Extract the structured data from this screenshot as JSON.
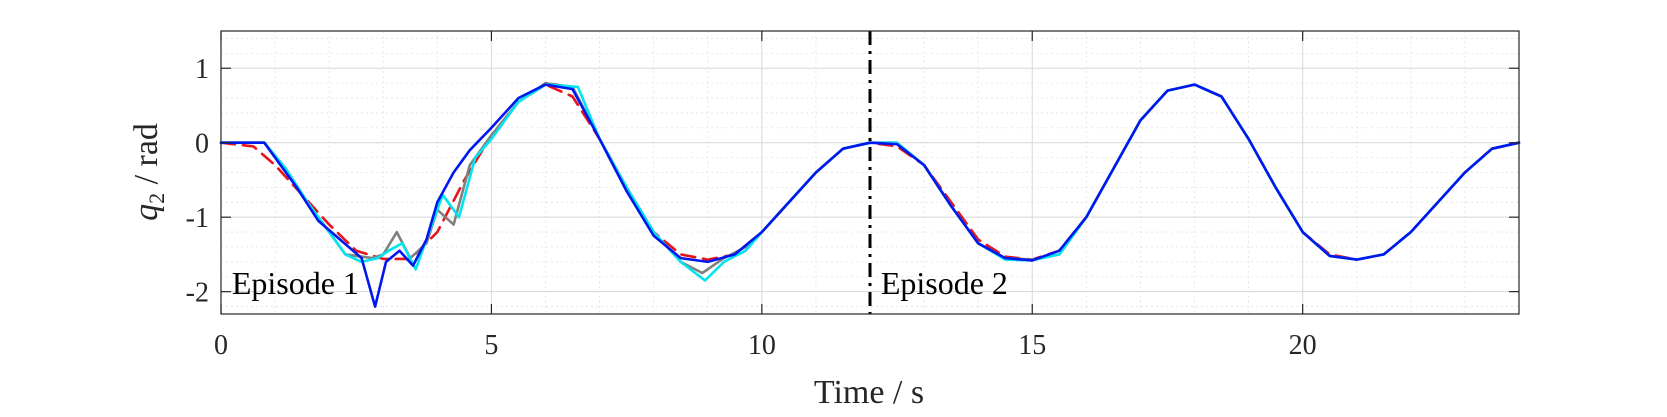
{
  "chart_data": {
    "type": "line",
    "xlabel": "Time / s",
    "ylabel_main": "q",
    "ylabel_sub": "2",
    "ylabel_rest": " / rad",
    "xlim": [
      0,
      24
    ],
    "ylim": [
      -2.3,
      1.5
    ],
    "xticks": [
      0,
      5,
      10,
      15,
      20
    ],
    "xtick_labels": [
      "0",
      "5",
      "10",
      "15",
      "20"
    ],
    "yticks": [
      1,
      0,
      -1,
      -2
    ],
    "ytick_labels": [
      "1",
      "0",
      "-1",
      "-2"
    ],
    "grid": true,
    "minor_grid": true,
    "divider_x": 12,
    "annotations": [
      {
        "text": "Episode 1",
        "x": 0.2,
        "y": -1.9
      },
      {
        "text": "Episode 2",
        "x": 12.2,
        "y": -1.9
      }
    ],
    "series": [
      {
        "style": "dashed",
        "color": "#e8141c",
        "x": [
          0,
          0.6,
          1,
          1.5,
          2,
          2.5,
          3,
          3.5,
          4,
          4.5,
          5,
          5.5,
          6,
          6.5,
          7,
          7.5,
          8,
          8.5,
          9,
          9.5,
          10,
          10.5,
          11,
          11.5,
          12,
          12.5,
          13,
          13.5,
          14,
          14.5,
          15,
          15.5,
          16,
          16.5,
          17,
          17.5,
          18,
          18.5,
          19,
          19.5,
          20,
          20.5,
          21,
          21.5,
          22,
          22.5,
          23,
          23.5,
          24
        ],
        "y": [
          0,
          -0.05,
          -0.3,
          -0.7,
          -1.1,
          -1.45,
          -1.56,
          -1.56,
          -1.2,
          -0.5,
          0.1,
          0.55,
          0.78,
          0.62,
          0.05,
          -0.6,
          -1.2,
          -1.5,
          -1.57,
          -1.5,
          -1.2,
          -0.8,
          -0.4,
          -0.08,
          0,
          -0.05,
          -0.3,
          -0.8,
          -1.3,
          -1.53,
          -1.57,
          -1.45,
          -1.0,
          -0.35,
          0.3,
          0.7,
          0.78,
          0.62,
          0.05,
          -0.6,
          -1.2,
          -1.5,
          -1.57,
          -1.5,
          -1.2,
          -0.8,
          -0.4,
          -0.08,
          0
        ]
      },
      {
        "style": "solid",
        "color": "#808080",
        "x": [
          0,
          0.8,
          1.2,
          1.6,
          2,
          2.3,
          2.5,
          2.8,
          3,
          3.25,
          3.5,
          3.8,
          4,
          4.3,
          4.6,
          5,
          5.5,
          6,
          6.5,
          7,
          7.5,
          8,
          8.5,
          8.9,
          9.3,
          9.7,
          10,
          10.5,
          11,
          11.5,
          12,
          12.5,
          13,
          13.5,
          14,
          14.5,
          15,
          15.5,
          16,
          16.5,
          17,
          17.5,
          18,
          18.5,
          19,
          19.5,
          20,
          20.5,
          21,
          21.5,
          22,
          22.5,
          23,
          23.5,
          24
        ],
        "y": [
          0,
          0,
          -0.35,
          -0.8,
          -1.2,
          -1.5,
          -1.52,
          -1.55,
          -1.5,
          -1.2,
          -1.55,
          -1.35,
          -0.9,
          -1.1,
          -0.3,
          0.1,
          0.55,
          0.8,
          0.75,
          0.05,
          -0.6,
          -1.2,
          -1.6,
          -1.75,
          -1.55,
          -1.4,
          -1.2,
          -0.8,
          -0.4,
          -0.08,
          0,
          0,
          -0.3,
          -0.85,
          -1.35,
          -1.55,
          -1.57,
          -1.5,
          -1.0,
          -0.35,
          0.3,
          0.7,
          0.78,
          0.62,
          0.05,
          -0.6,
          -1.2,
          -1.52,
          -1.57,
          -1.5,
          -1.2,
          -0.8,
          -0.4,
          -0.08,
          0
        ]
      },
      {
        "style": "solid",
        "color": "#00e5ee",
        "x": [
          0,
          0.8,
          1.2,
          1.6,
          2,
          2.3,
          2.6,
          2.9,
          3.1,
          3.35,
          3.6,
          3.9,
          4.1,
          4.4,
          4.7,
          5,
          5.5,
          6,
          6.6,
          7,
          7.5,
          8,
          8.5,
          8.95,
          9.3,
          9.7,
          10,
          10.5,
          11,
          11.5,
          12,
          12.5,
          13,
          13.5,
          14,
          14.5,
          15,
          15.5,
          16,
          16.5,
          17,
          17.5,
          18,
          18.5,
          19,
          19.5,
          20,
          20.5,
          21,
          21.5,
          22,
          22.5,
          23,
          23.5,
          24
        ],
        "y": [
          0,
          0,
          -0.35,
          -0.8,
          -1.2,
          -1.5,
          -1.6,
          -1.55,
          -1.45,
          -1.35,
          -1.7,
          -1.1,
          -0.7,
          -1.0,
          -0.2,
          0.05,
          0.55,
          0.78,
          0.75,
          0.05,
          -0.6,
          -1.2,
          -1.6,
          -1.85,
          -1.6,
          -1.45,
          -1.2,
          -0.8,
          -0.4,
          -0.08,
          0,
          0,
          -0.3,
          -0.85,
          -1.35,
          -1.57,
          -1.58,
          -1.5,
          -1.0,
          -0.35,
          0.3,
          0.7,
          0.78,
          0.62,
          0.05,
          -0.6,
          -1.2,
          -1.52,
          -1.57,
          -1.5,
          -1.2,
          -0.8,
          -0.4,
          -0.08,
          0
        ]
      },
      {
        "style": "solid",
        "color": "#0018f0",
        "x": [
          0,
          0.8,
          1,
          1.4,
          1.8,
          2.2,
          2.6,
          2.85,
          3.05,
          3.3,
          3.55,
          3.8,
          4,
          4.3,
          4.6,
          5,
          5.5,
          6,
          6.5,
          7,
          7.5,
          8,
          8.5,
          9,
          9.5,
          10,
          10.5,
          11,
          11.5,
          12,
          12.5,
          13,
          13.5,
          14,
          14.5,
          15,
          15.5,
          16,
          16.5,
          17,
          17.5,
          18,
          18.5,
          19,
          19.5,
          20,
          20.5,
          21,
          21.5,
          22,
          22.5,
          23,
          23.5,
          24
        ],
        "y": [
          0,
          0,
          -0.2,
          -0.6,
          -1.05,
          -1.3,
          -1.55,
          -2.2,
          -1.6,
          -1.45,
          -1.65,
          -1.3,
          -0.8,
          -0.4,
          -0.1,
          0.2,
          0.6,
          0.78,
          0.72,
          0.05,
          -0.65,
          -1.25,
          -1.55,
          -1.6,
          -1.5,
          -1.2,
          -0.8,
          -0.4,
          -0.08,
          0,
          -0.02,
          -0.3,
          -0.85,
          -1.35,
          -1.55,
          -1.58,
          -1.45,
          -1.0,
          -0.35,
          0.3,
          0.7,
          0.78,
          0.62,
          0.05,
          -0.6,
          -1.2,
          -1.52,
          -1.57,
          -1.5,
          -1.2,
          -0.8,
          -0.4,
          -0.08,
          0
        ]
      }
    ]
  }
}
